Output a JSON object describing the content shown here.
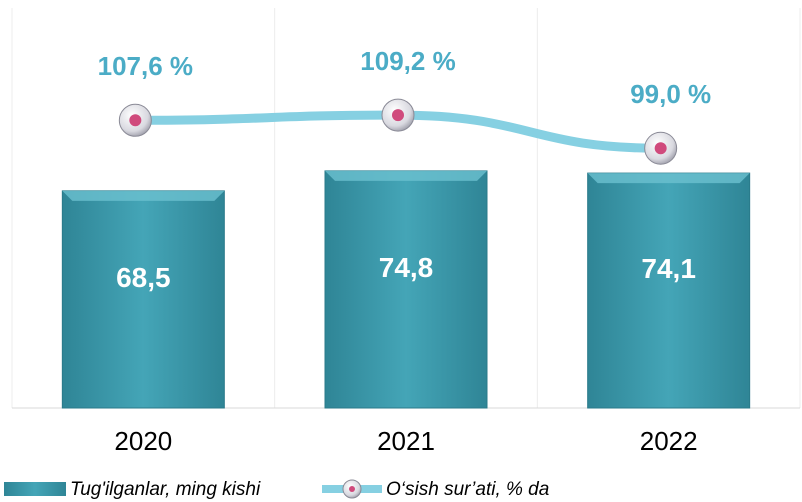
{
  "chart_data": {
    "type": "bar",
    "categories": [
      "2020",
      "2021",
      "2022"
    ],
    "series": [
      {
        "name": "Tug'ilganlar, ming kishi",
        "type": "bar",
        "color": "#3a97a9",
        "values": [
          68.5,
          74.8,
          74.1
        ],
        "value_labels": [
          "68,5",
          "74,8",
          "74,1"
        ]
      },
      {
        "name": "O‘sish sur’ati, % da",
        "type": "line",
        "axis": "y2",
        "color": "#86d0e2",
        "values": [
          107.6,
          109.2,
          99.0
        ],
        "value_labels": [
          "107,6 %",
          "109,2 %",
          "99,0 %"
        ]
      }
    ],
    "grid": true,
    "legend": "bottom"
  }
}
